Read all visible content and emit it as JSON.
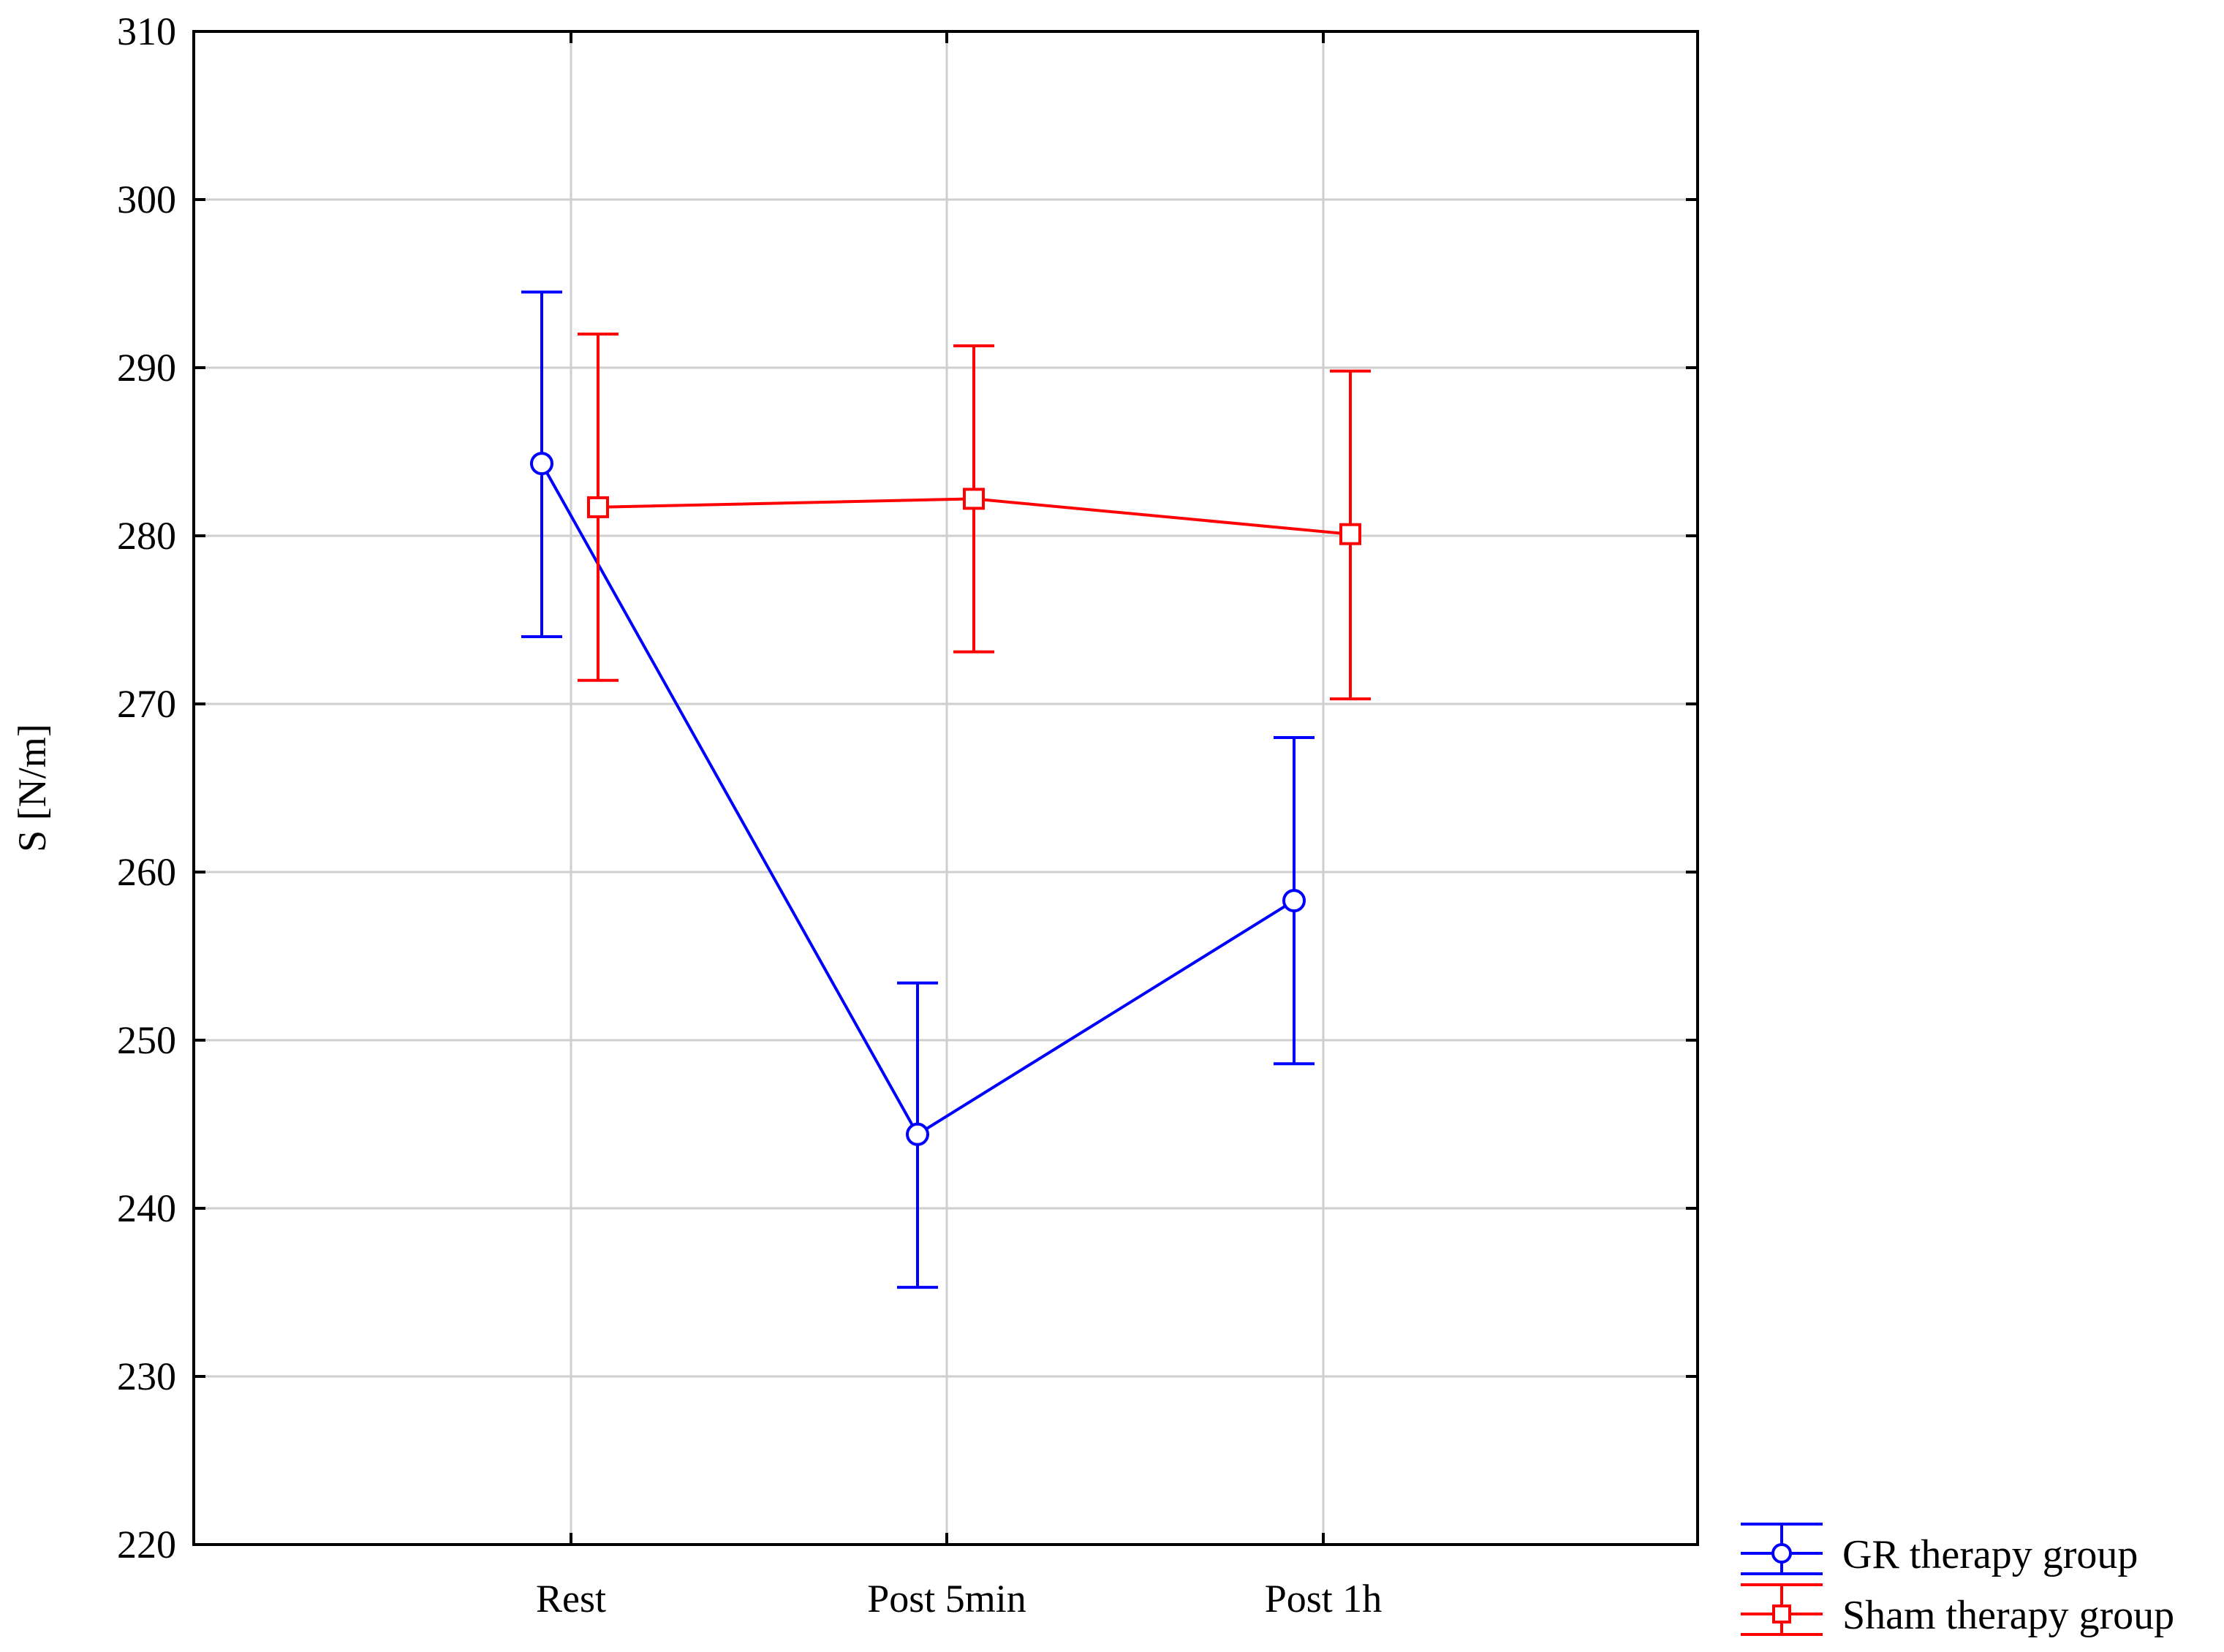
{
  "chart_data": {
    "type": "line",
    "categories": [
      "Rest",
      "Post 5min",
      "Post 1h"
    ],
    "ylabel": "S [N/m]",
    "xlabel": "",
    "title": "",
    "ylim": [
      220,
      310
    ],
    "yticks": [
      220,
      230,
      240,
      250,
      260,
      270,
      280,
      290,
      300,
      310
    ],
    "grid": true,
    "legend_position": "bottom-right",
    "series": [
      {
        "name": "GR therapy group",
        "color": "#0000ff",
        "marker": "circle",
        "values": [
          284.3,
          244.4,
          258.3
        ],
        "err_low": [
          274.0,
          235.3,
          248.6
        ],
        "err_high": [
          294.5,
          253.4,
          268.0
        ]
      },
      {
        "name": "Sham therapy group",
        "color": "#ff0000",
        "marker": "square",
        "values": [
          281.7,
          282.2,
          280.1
        ],
        "err_low": [
          271.4,
          273.1,
          270.3
        ],
        "err_high": [
          292.0,
          291.3,
          289.8
        ]
      }
    ]
  }
}
